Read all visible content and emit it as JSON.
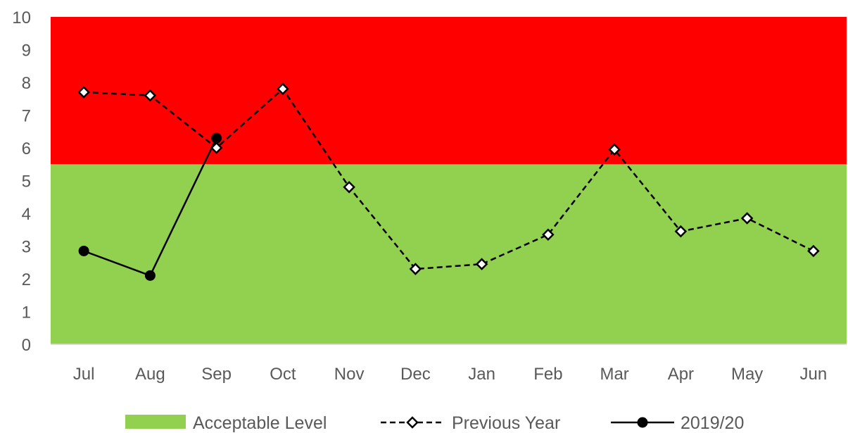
{
  "chart_data": {
    "type": "line",
    "title": "",
    "xlabel": "",
    "ylabel": "",
    "categories": [
      "Jul",
      "Aug",
      "Sep",
      "Oct",
      "Nov",
      "Dec",
      "Jan",
      "Feb",
      "Mar",
      "Apr",
      "May",
      "Jun"
    ],
    "ylim": [
      0,
      10
    ],
    "y_ticks": [
      "0",
      "1",
      "2",
      "3",
      "4",
      "5",
      "6",
      "7",
      "8",
      "9",
      "10"
    ],
    "bands": [
      {
        "name": "Acceptable Level",
        "from": 0,
        "to": 5.5,
        "color": "#92D050"
      },
      {
        "name": "",
        "from": 5.5,
        "to": 10,
        "color": "#FF0000"
      }
    ],
    "series": [
      {
        "name": "Previous Year",
        "style": "dashed",
        "marker": "diamond-open",
        "color": "#000000",
        "values": [
          7.7,
          7.6,
          6.0,
          7.8,
          4.8,
          2.3,
          2.45,
          3.35,
          5.95,
          3.45,
          3.85,
          2.85
        ]
      },
      {
        "name": "2019/20",
        "style": "solid",
        "marker": "circle-filled",
        "color": "#000000",
        "values": [
          2.85,
          2.1,
          6.3,
          null,
          null,
          null,
          null,
          null,
          null,
          null,
          null,
          null
        ]
      }
    ],
    "grid": false,
    "legend_position": "bottom"
  }
}
